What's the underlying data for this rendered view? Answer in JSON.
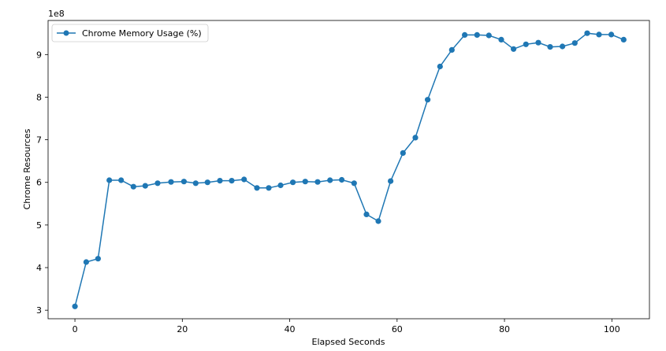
{
  "chart_data": {
    "type": "line",
    "title": "",
    "xlabel": "Elapsed Seconds",
    "ylabel": "Chrome Resources",
    "y_offset_label": "1e8",
    "xlim": [
      -5,
      107
    ],
    "ylim": [
      2.8,
      9.8
    ],
    "x_ticks": [
      0,
      20,
      40,
      60,
      80,
      100
    ],
    "y_ticks": [
      3,
      4,
      5,
      6,
      7,
      8,
      9
    ],
    "grid": false,
    "legend_position": "top-left",
    "series": [
      {
        "name": "Chrome Memory Usage (%)",
        "color": "#1f77b4",
        "x": [
          0,
          2.1,
          4.3,
          6.4,
          8.6,
          10.9,
          13.1,
          15.4,
          17.9,
          20.3,
          22.5,
          24.7,
          27.0,
          29.2,
          31.5,
          33.9,
          36.1,
          38.3,
          40.6,
          42.9,
          45.2,
          47.5,
          49.7,
          52.0,
          54.3,
          56.5,
          58.8,
          61.1,
          63.4,
          65.7,
          68.0,
          70.2,
          72.6,
          74.9,
          77.1,
          79.4,
          81.7,
          84.0,
          86.3,
          88.5,
          90.8,
          93.1,
          95.4,
          97.6,
          99.9,
          102.2
        ],
        "y": [
          3.09,
          4.13,
          4.21,
          6.05,
          6.05,
          5.9,
          5.92,
          5.98,
          6.01,
          6.02,
          5.98,
          6.0,
          6.04,
          6.04,
          6.07,
          5.87,
          5.87,
          5.93,
          6.0,
          6.02,
          6.01,
          6.05,
          6.06,
          5.98,
          5.25,
          5.09,
          6.03,
          6.69,
          7.05,
          7.94,
          8.72,
          9.11,
          9.46,
          9.46,
          9.45,
          9.35,
          9.13,
          9.24,
          9.28,
          9.18,
          9.19,
          9.27,
          9.5,
          9.47,
          9.47,
          9.35
        ]
      }
    ]
  }
}
